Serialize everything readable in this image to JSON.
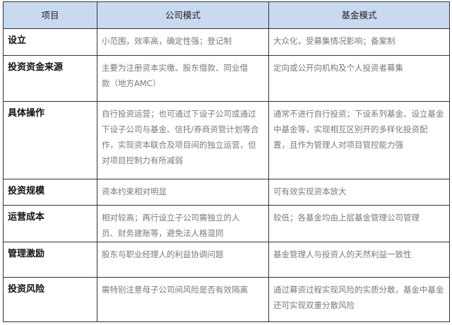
{
  "header": [
    "项目",
    "公司模式",
    "基金模式"
  ],
  "rows": [
    {
      "item": "设立",
      "company": [
        "小范围，效率高，确定性强；登记制"
      ],
      "fund": [
        "大众化，受募集情况影响；备案制"
      ]
    },
    {
      "item": "投资资金来源",
      "company": [
        "主要为注册资本实缴、股东借款、同业借",
        "款（地方AMC）"
      ],
      "fund": [
        "定向或公开向机构及个人投资者募集"
      ]
    },
    {
      "item": "具体操作",
      "company": [
        "自行投资运营；也可通过下设子公司或通过",
        "下设子公司与基金、信托/券商资管计划等合",
        "作，实现资本联合及项目间的独立运营，但",
        "对项目控制力有所减弱"
      ],
      "fund": [
        "通常不进行自行投资；下设系列基金、设立基金",
        "中基金等，实现相互区别开的多样化投资配",
        "置，且作为管理人对项目管控能力强"
      ]
    },
    {
      "item": "投资规模",
      "company": [
        "资本约束相对明显"
      ],
      "fund": [
        "可有效实现资本放大"
      ]
    },
    {
      "item": "运营成本",
      "company": [
        "相对较高；再行设立子公司需独立的人",
        "员、财务建账等，避免法人格混同"
      ],
      "fund": [
        "较低；各基金均由上层基金管理公司管理"
      ]
    },
    {
      "item": "管理激励",
      "company": [
        "股东与职业经理人的利益协调问题"
      ],
      "fund": [
        "基金管理人与投资人的天然利益一致性"
      ]
    },
    {
      "item": "投资风险",
      "company": [
        "需特别注意母子公司间风险是否有效隔离"
      ],
      "fund": [
        "通过募资过程实现风险的实质分散，基金中基金",
        "还可实现双重分散风险"
      ]
    }
  ]
}
